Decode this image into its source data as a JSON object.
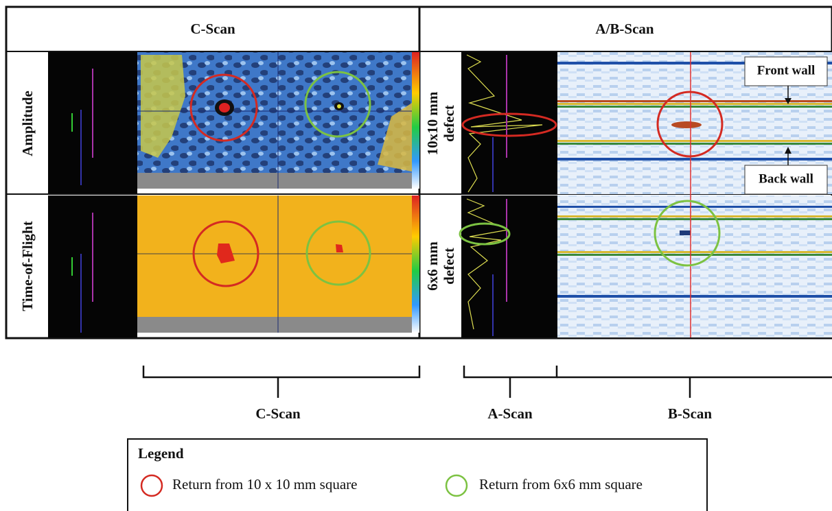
{
  "header": {
    "left": "C-Scan",
    "right": "A/B-Scan"
  },
  "rows": [
    {
      "label": "Amplitude",
      "defect": [
        "10x10 mm",
        "defect"
      ]
    },
    {
      "label": "Time-of-Flight",
      "defect": [
        "6x6 mm",
        "defect"
      ]
    }
  ],
  "annotations": {
    "front_wall": "Front wall",
    "back_wall": "Back wall"
  },
  "brackets": [
    "C-Scan",
    "A-Scan",
    "B-Scan"
  ],
  "legend": {
    "title": "Legend",
    "items": [
      "Return from 10 x 10 mm square",
      "Return from 6x6 mm square"
    ]
  }
}
